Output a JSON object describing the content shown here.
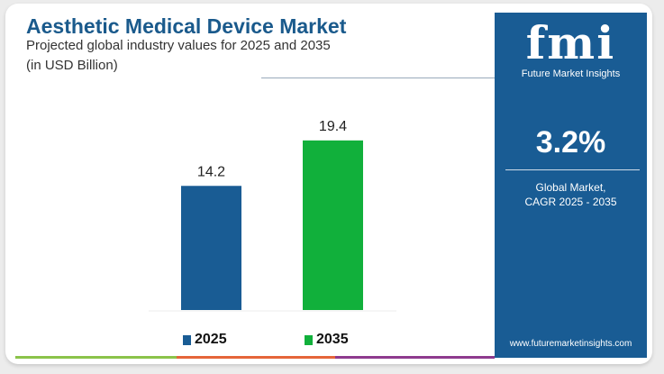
{
  "header": {
    "title": "Aesthetic Medical Device Market",
    "subtitle": "Projected global industry values for 2025 and 2035",
    "unit": "(in USD Billion)"
  },
  "panel": {
    "logo": "fmi",
    "brand": "Future Market Insights",
    "cagr": "3.2%",
    "label1": "Global Market,",
    "label2": "CAGR 2025 - 2035",
    "url": "www.futuremarketinsights.com"
  },
  "colors": {
    "c2025": "#195c94",
    "c2035": "#11b03b",
    "panel": "#195c94"
  },
  "chart_data": {
    "type": "bar",
    "categories": [
      "2025",
      "2035"
    ],
    "values": [
      14.2,
      19.4
    ],
    "labels": [
      "14.2",
      "19.4"
    ],
    "title": "Aesthetic Medical Device Market",
    "ylabel": "USD Billion",
    "ylim": [
      0,
      20
    ],
    "grid": false,
    "legend": "bottom"
  }
}
